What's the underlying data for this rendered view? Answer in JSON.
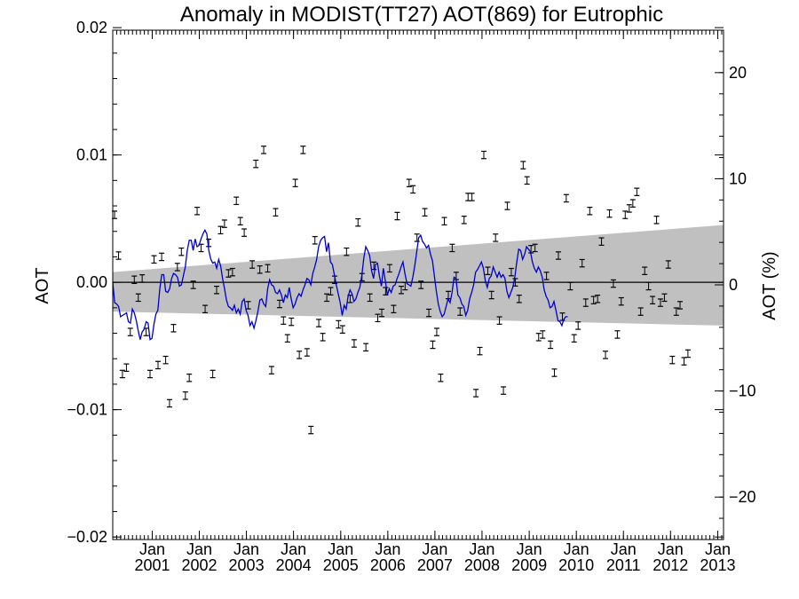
{
  "chart_data": {
    "type": "line",
    "title": "Anomaly in MODIST(TT27) AOT(869) for Eutrophic",
    "ylabel": "AOT",
    "ylabel_right": "AOT (%)",
    "xlabel": "",
    "xlim": [
      "2000-03-01",
      "2013-02-15"
    ],
    "ylim": [
      -0.0202,
      0.0198
    ],
    "ylim_right": [
      -24.0,
      24.0
    ],
    "y_ticks": [
      {
        "value": -0.02,
        "label": "−0.02"
      },
      {
        "value": -0.01,
        "label": "−0.01"
      },
      {
        "value": 0.0,
        "label": "0.00"
      },
      {
        "value": 0.01,
        "label": "0.01"
      },
      {
        "value": 0.02,
        "label": "0.02"
      }
    ],
    "y_ticks_right": [
      {
        "value": -20,
        "label": "−20"
      },
      {
        "value": -10,
        "label": "−10"
      },
      {
        "value": 0,
        "label": "0"
      },
      {
        "value": 10,
        "label": "10"
      },
      {
        "value": 20,
        "label": "20"
      }
    ],
    "x_ticks": [
      {
        "date": "2001-01-01",
        "month": "Jan",
        "year": "2001"
      },
      {
        "date": "2002-01-01",
        "month": "Jan",
        "year": "2002"
      },
      {
        "date": "2003-01-01",
        "month": "Jan",
        "year": "2003"
      },
      {
        "date": "2004-01-01",
        "month": "Jan",
        "year": "2004"
      },
      {
        "date": "2005-01-01",
        "month": "Jan",
        "year": "2005"
      },
      {
        "date": "2006-01-01",
        "month": "Jan",
        "year": "2006"
      },
      {
        "date": "2007-01-01",
        "month": "Jan",
        "year": "2007"
      },
      {
        "date": "2008-01-01",
        "month": "Jan",
        "year": "2008"
      },
      {
        "date": "2009-01-01",
        "month": "Jan",
        "year": "2009"
      },
      {
        "date": "2010-01-01",
        "month": "Jan",
        "year": "2010"
      },
      {
        "date": "2011-01-01",
        "month": "Jan",
        "year": "2011"
      },
      {
        "date": "2012-01-01",
        "month": "Jan",
        "year": "2012"
      },
      {
        "date": "2013-01-01",
        "month": "Jan",
        "year": "2013"
      }
    ],
    "zero_line": 0.0,
    "uncertainty_band": {
      "x": [
        "2000-03-01",
        "2013-02-15"
      ],
      "upper": [
        0.0008,
        0.0045
      ],
      "lower": [
        -0.0023,
        -0.0034
      ]
    },
    "points_start": "2000-03",
    "points": [
      0.0053,
      0.0021,
      -0.0072,
      -0.0067,
      -0.0039,
      0.0002,
      -0.0012,
      0.0003,
      -0.0039,
      -0.0072,
      0.0018,
      -0.0065,
      0.002,
      -0.0061,
      -0.0095,
      -0.0036,
      0.0012,
      0.0024,
      -0.0089,
      -0.0075,
      -0.0002,
      0.0056,
      0.0027,
      -0.0021,
      0.0031,
      -0.0072,
      -0.0006,
      0.0041,
      0.0046,
      0.0007,
      0.0008,
      0.0064,
      0.0048,
      0.0039,
      -0.0018,
      0.0014,
      0.0093,
      0.001,
      0.0104,
      0.0011,
      -0.0069,
      0.0055,
      -0.0017,
      -0.003,
      -0.0044,
      -0.0031,
      0.0078,
      -0.0057,
      0.0104,
      -0.0055,
      -0.0116,
      0.0033,
      -0.0032,
      -0.0043,
      -0.0012,
      -0.0007,
      0.0002,
      -0.0033,
      -0.0037,
      0.0024,
      -0.0013,
      -0.0048,
      0.0047,
      0.0004,
      -0.0051,
      -0.0012,
      0.0013,
      -0.0028,
      -0.0024,
      -0.0007,
      0.0011,
      -0.0021,
      0.0052,
      -0.0006,
      -0.0003,
      0.0078,
      0.0073,
      0.0035,
      -0.0002,
      0.0055,
      -0.0024,
      -0.0049,
      -0.0039,
      -0.0075,
      0.0048,
      -0.001,
      0.0027,
      0.0005,
      -0.0023,
      0.0049,
      0.0067,
      0.0067,
      -0.0087,
      -0.0054,
      0.01,
      0.0009,
      -0.001,
      0.0035,
      -0.003,
      -0.0085,
      0.006,
      0.0008,
      0.0,
      -0.0013,
      0.0092,
      0.008,
      0.0026,
      0.0027,
      -0.0043,
      -0.0041,
      0.0005,
      -0.0049,
      -0.0071,
      0.0021,
      -0.0027,
      0.0066,
      -0.0003,
      -0.0044,
      -0.0034,
      0.0015,
      -0.0016,
      0.0056,
      -0.0014,
      -0.0013,
      0.0032,
      -0.0057,
      0.0054,
      -0.0001,
      -0.0041,
      -0.0015,
      0.0053,
      0.0058,
      0.0062,
      0.0071,
      -0.0023,
      0.0009,
      -0.0003,
      -0.0014,
      0.0049,
      -0.0016,
      -0.0012,
      0.0014,
      -0.0061,
      -0.0023,
      -0.0018,
      -0.0062,
      -0.0056
    ],
    "error_bar": 0.00015,
    "series": [
      {
        "name": "",
        "color": "#0000cc",
        "x_start": "2000-03-01",
        "x_step_days": 15.2,
        "values": [
          0.0,
          -0.0016,
          -0.0017,
          -0.0019,
          -0.0027,
          -0.0026,
          -0.0025,
          -0.0024,
          -0.0031,
          -0.0032,
          -0.0021,
          -0.0024,
          -0.003,
          -0.0038,
          -0.0045,
          -0.0039,
          -0.0037,
          -0.0031,
          -0.0032,
          -0.0045,
          -0.0044,
          -0.0033,
          -0.0025,
          -0.0022,
          -0.0005,
          0.0006,
          0.0006,
          -0.0007,
          -0.0008,
          -0.0005,
          0.0003,
          0.0007,
          0.0006,
          0.0004,
          -0.0003,
          -0.0002,
          0.0005,
          0.0012,
          0.0025,
          0.0033,
          0.0033,
          0.0025,
          0.0034,
          0.0028,
          0.0029,
          0.0034,
          0.0038,
          0.0041,
          0.0038,
          0.0025,
          0.0018,
          0.0015,
          0.0016,
          0.0011,
          0.0018,
          0.0013,
          0.0003,
          -0.0005,
          -0.0014,
          -0.0019,
          -0.002,
          -0.0022,
          -0.0018,
          -0.0024,
          -0.0021,
          -0.0025,
          -0.0015,
          -0.0013,
          -0.0022,
          -0.0026,
          -0.0034,
          -0.0031,
          -0.0036,
          -0.003,
          -0.0023,
          -0.0014,
          -0.0013,
          -0.0017,
          -0.0019,
          -0.0005,
          0.0002,
          -0.0002,
          -0.0003,
          -0.0008,
          -0.0009,
          -0.0006,
          -0.001,
          -0.0016,
          -0.001,
          -0.0012,
          -0.0004,
          -0.0013,
          -0.002,
          -0.0017,
          -0.0012,
          -0.0009,
          -0.0011,
          -0.0006,
          -0.0002,
          0.0003,
          0.0002,
          -0.0002,
          0.0007,
          0.0012,
          0.0018,
          0.0028,
          0.0033,
          0.0035,
          0.0036,
          0.0024,
          0.0031,
          0.0016,
          0.0014,
          0.0006,
          -0.0002,
          -0.0009,
          -0.0016,
          -0.0026,
          -0.0018,
          -0.0021,
          -0.0011,
          -0.0006,
          -0.0009,
          -0.0015,
          -0.0013,
          -0.0008,
          -0.0004,
          0.0005,
          0.0019,
          0.0028,
          0.0025,
          0.0021,
          0.0009,
          0.0003,
          0.0014,
          0.0015,
          0.0005,
          -0.0003,
          0.0011,
          0.0001,
          -0.001,
          -0.0005,
          -0.0008,
          -0.0003,
          -0.0002,
          0.0003,
          0.0007,
          0.0012,
          0.0016,
          0.0007,
          -0.0001,
          -0.0002,
          -0.0003,
          0.0004,
          0.0013,
          0.0024,
          0.0035,
          0.0037,
          0.0032,
          0.003,
          0.0027,
          0.0029,
          0.0022,
          0.0017,
          0.0005,
          -0.0007,
          -0.0017,
          -0.0023,
          -0.0027,
          -0.0025,
          -0.0019,
          -0.0013,
          -0.0016,
          -0.0008,
          0.0004,
          0.0003,
          -0.001,
          -0.0012,
          -0.0017,
          -0.0019,
          -0.0026,
          -0.0022,
          -0.0013,
          -0.0008,
          -0.0002,
          0.0008,
          0.001,
          0.0013,
          0.0016,
          0.0011,
          0.0001,
          -0.0004,
          0.0003,
          0.0005,
          0.0012,
          0.0008,
          0.0004,
          0.0008,
          0.0004,
          0.0006,
          0.0003,
          -0.0007,
          -0.0012,
          -0.0008,
          -0.0004,
          0.0004,
          0.0016,
          0.0026,
          0.0025,
          0.0018,
          0.0022,
          0.0028,
          0.0026,
          0.0024,
          0.0016,
          0.0011,
          0.0008,
          0.0012,
          0.0009,
          0.0004,
          -0.0006,
          -0.0011,
          -0.0014,
          -0.002,
          -0.0019,
          -0.0015,
          -0.0022,
          -0.003,
          -0.0031,
          -0.0034,
          -0.0029,
          -0.0027,
          -0.0027
        ]
      }
    ]
  }
}
